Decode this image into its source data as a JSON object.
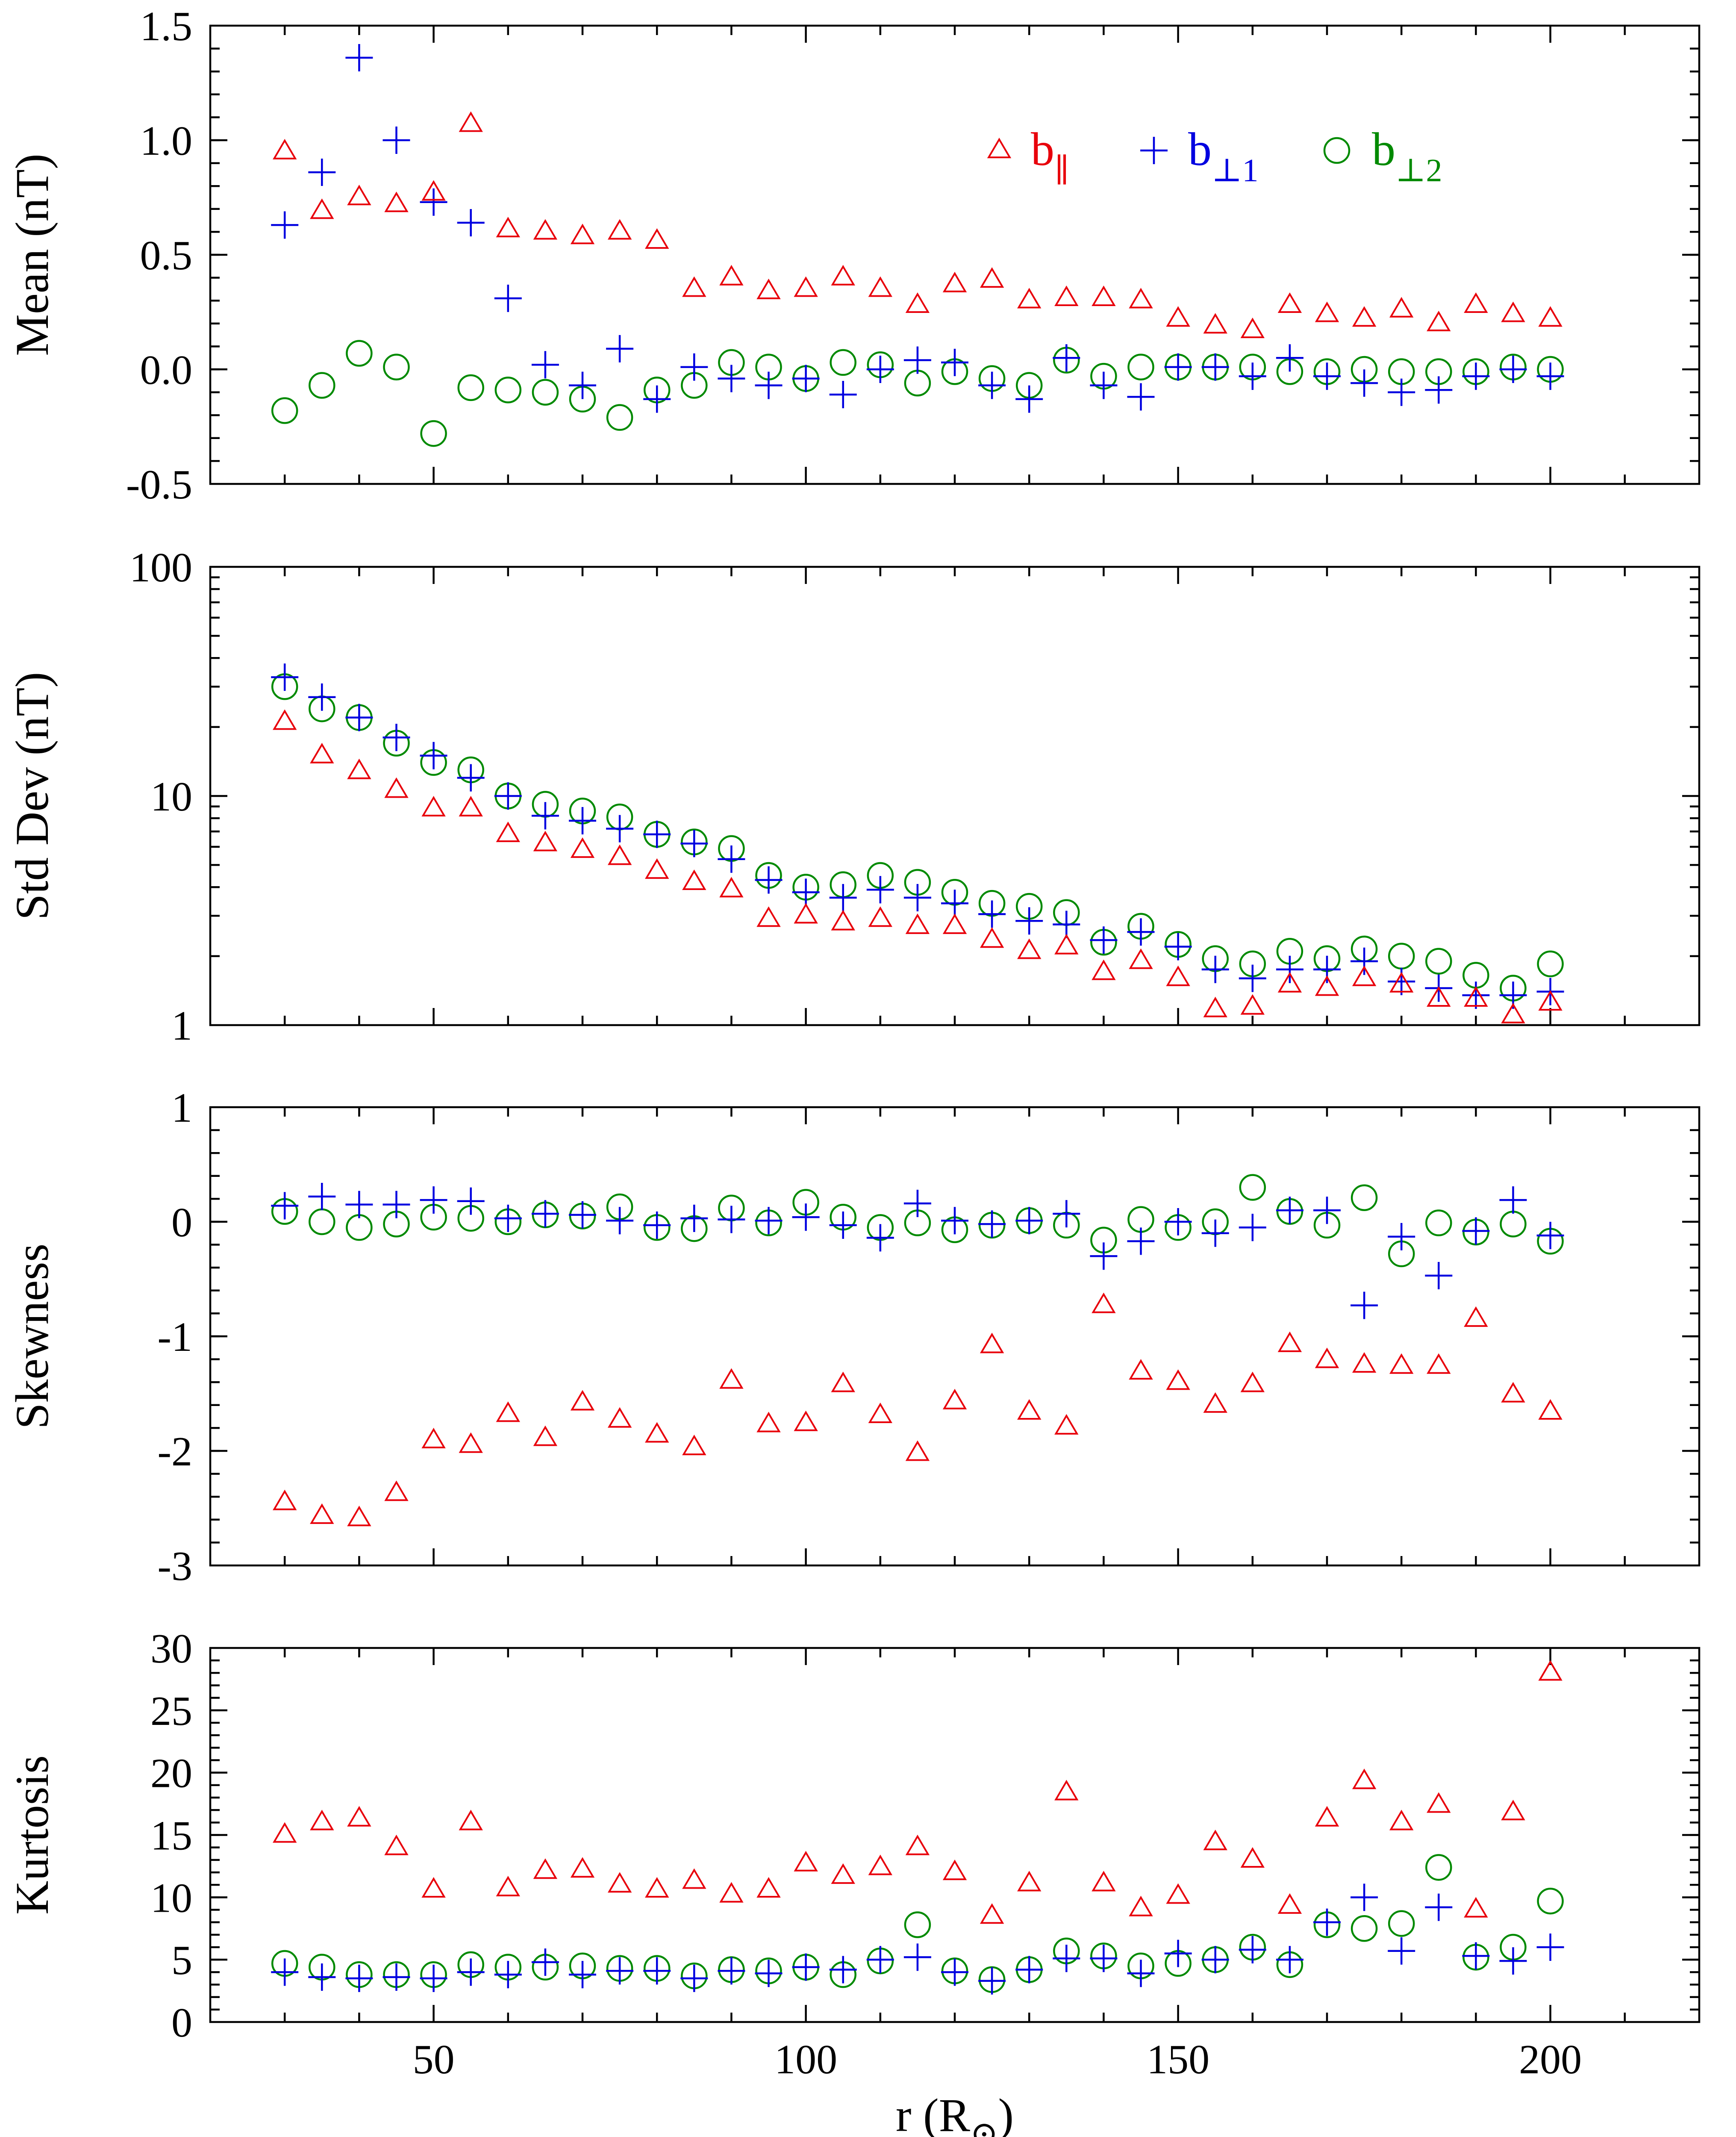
{
  "figure": {
    "xlabel_main": "r (R",
    "xlabel_close": ")",
    "xlabel_sub": "⊙",
    "x_ticks": [
      "50",
      "100",
      "150",
      "200"
    ]
  },
  "legend": [
    {
      "name": "b",
      "sub": "∥",
      "marker": "triangle",
      "color": "#e8000b"
    },
    {
      "name": "b",
      "sub": "⊥1",
      "marker": "plus",
      "color": "#0000e0"
    },
    {
      "name": "b",
      "sub": "⊥2",
      "marker": "circle",
      "color": "#008a00"
    }
  ],
  "chart_data": [
    {
      "type": "scatter",
      "id": "mean",
      "ylabel": "Mean (nT)",
      "xlim": [
        20,
        220
      ],
      "ylim": [
        -0.5,
        1.5
      ],
      "yscale": "linear",
      "y_ticks": [
        1.5,
        1.0,
        0.5,
        0.0,
        -0.5
      ],
      "y_tick_labels": [
        "1.5",
        "1.0",
        "0.5",
        "0.0",
        "-0.5"
      ],
      "y_minor_step": 0.1,
      "x": [
        30,
        35,
        40,
        45,
        50,
        55,
        60,
        65,
        70,
        75,
        80,
        85,
        90,
        95,
        100,
        105,
        110,
        115,
        120,
        125,
        130,
        135,
        140,
        145,
        150,
        155,
        160,
        165,
        170,
        175,
        180,
        185,
        190,
        195,
        200
      ],
      "series": [
        {
          "name": "b∥",
          "values": [
            0.95,
            0.69,
            0.75,
            0.72,
            0.77,
            1.07,
            0.61,
            0.6,
            0.58,
            0.6,
            0.56,
            0.35,
            0.4,
            0.34,
            0.35,
            0.4,
            0.35,
            0.28,
            0.37,
            0.39,
            0.3,
            0.31,
            0.31,
            0.3,
            0.22,
            0.19,
            0.17,
            0.28,
            0.24,
            0.22,
            0.26,
            0.2,
            0.28,
            0.24,
            0.22
          ]
        },
        {
          "name": "b⊥1",
          "values": [
            0.63,
            0.86,
            1.36,
            1.0,
            0.73,
            0.64,
            0.31,
            0.02,
            -0.07,
            0.09,
            -0.13,
            0.01,
            -0.04,
            -0.07,
            -0.04,
            -0.11,
            0.0,
            0.04,
            0.03,
            -0.07,
            -0.13,
            0.05,
            -0.07,
            -0.12,
            0.01,
            0.01,
            -0.03,
            0.05,
            -0.03,
            -0.06,
            -0.1,
            -0.09,
            -0.03,
            0.0,
            -0.03
          ]
        },
        {
          "name": "b⊥2",
          "values": [
            -0.18,
            -0.07,
            0.07,
            0.01,
            -0.28,
            -0.08,
            -0.09,
            -0.1,
            -0.13,
            -0.21,
            -0.09,
            -0.07,
            0.03,
            0.01,
            -0.04,
            0.03,
            0.02,
            -0.06,
            -0.01,
            -0.04,
            -0.07,
            0.04,
            -0.03,
            0.01,
            0.01,
            0.01,
            0.01,
            -0.01,
            -0.01,
            0.0,
            -0.01,
            -0.01,
            -0.01,
            0.01,
            0.0
          ]
        }
      ]
    },
    {
      "type": "scatter",
      "id": "stddev",
      "ylabel": "Std Dev (nT)",
      "xlim": [
        20,
        220
      ],
      "ylim": [
        1,
        100
      ],
      "yscale": "log",
      "y_ticks": [
        100,
        10,
        1
      ],
      "y_tick_labels": [
        "100",
        "10",
        "1"
      ],
      "x": [
        30,
        35,
        40,
        45,
        50,
        55,
        60,
        65,
        70,
        75,
        80,
        85,
        90,
        95,
        100,
        105,
        110,
        115,
        120,
        125,
        130,
        135,
        140,
        145,
        150,
        155,
        160,
        165,
        170,
        175,
        180,
        185,
        190,
        195,
        200
      ],
      "series": [
        {
          "name": "b∥",
          "values": [
            21,
            15,
            12.8,
            10.6,
            8.8,
            8.8,
            6.8,
            6.2,
            5.8,
            5.4,
            4.7,
            4.2,
            3.9,
            2.9,
            3.0,
            2.8,
            2.9,
            2.7,
            2.7,
            2.35,
            2.1,
            2.2,
            1.7,
            1.9,
            1.6,
            1.17,
            1.2,
            1.5,
            1.45,
            1.6,
            1.5,
            1.3,
            1.3,
            1.1,
            1.25
          ]
        },
        {
          "name": "b⊥1",
          "values": [
            33,
            27,
            22,
            18,
            15,
            12,
            10,
            8.2,
            7.8,
            7.2,
            6.8,
            6.2,
            5.3,
            4.3,
            3.8,
            3.6,
            3.9,
            3.6,
            3.4,
            3.05,
            2.85,
            2.75,
            2.35,
            2.55,
            2.2,
            1.75,
            1.6,
            1.75,
            1.75,
            1.9,
            1.55,
            1.45,
            1.35,
            1.35,
            1.4
          ]
        },
        {
          "name": "b⊥2",
          "values": [
            30,
            24,
            22,
            17,
            14,
            13,
            10,
            9.2,
            8.6,
            8.1,
            6.8,
            6.3,
            5.9,
            4.5,
            4.0,
            4.1,
            4.5,
            4.2,
            3.8,
            3.4,
            3.3,
            3.1,
            2.3,
            2.7,
            2.25,
            1.95,
            1.85,
            2.1,
            1.95,
            2.15,
            2.0,
            1.9,
            1.65,
            1.45,
            1.85
          ]
        }
      ]
    },
    {
      "type": "scatter",
      "id": "skewness",
      "ylabel": "Skewness",
      "xlim": [
        20,
        220
      ],
      "ylim": [
        -3,
        1
      ],
      "yscale": "linear",
      "y_ticks": [
        1,
        0,
        -1,
        -2,
        -3
      ],
      "y_tick_labels": [
        "1",
        "0",
        "-1",
        "-2",
        "-3"
      ],
      "y_minor_step": 0.2,
      "x": [
        30,
        35,
        40,
        45,
        50,
        55,
        60,
        65,
        70,
        75,
        80,
        85,
        90,
        95,
        100,
        105,
        110,
        115,
        120,
        125,
        130,
        135,
        140,
        145,
        150,
        155,
        160,
        165,
        170,
        175,
        180,
        185,
        190,
        195,
        200
      ],
      "series": [
        {
          "name": "b∥",
          "values": [
            -2.45,
            -2.57,
            -2.59,
            -2.37,
            -1.91,
            -1.95,
            -1.68,
            -1.89,
            -1.58,
            -1.73,
            -1.86,
            -1.97,
            -1.39,
            -1.77,
            -1.76,
            -1.42,
            -1.69,
            -2.02,
            -1.57,
            -1.08,
            -1.66,
            -1.79,
            -0.73,
            -1.31,
            -1.4,
            -1.6,
            -1.42,
            -1.07,
            -1.21,
            -1.25,
            -1.26,
            -1.26,
            -0.85,
            -1.51,
            -1.66
          ]
        },
        {
          "name": "b⊥1",
          "values": [
            0.14,
            0.22,
            0.15,
            0.15,
            0.19,
            0.18,
            0.03,
            0.07,
            0.06,
            0.01,
            -0.03,
            0.03,
            0.02,
            0.01,
            0.04,
            -0.03,
            -0.14,
            0.16,
            0.01,
            -0.02,
            0.01,
            0.07,
            -0.3,
            -0.17,
            0.0,
            -0.1,
            -0.05,
            0.1,
            0.1,
            -0.73,
            -0.13,
            -0.47,
            -0.08,
            0.19,
            -0.12
          ]
        },
        {
          "name": "b⊥2",
          "values": [
            0.09,
            0.0,
            -0.05,
            -0.02,
            0.04,
            0.03,
            0.0,
            0.06,
            0.05,
            0.13,
            -0.05,
            -0.06,
            0.12,
            -0.01,
            0.17,
            0.04,
            -0.05,
            -0.01,
            -0.07,
            -0.03,
            0.01,
            -0.03,
            -0.16,
            0.02,
            -0.05,
            0.0,
            0.3,
            0.09,
            -0.03,
            0.21,
            -0.28,
            -0.01,
            -0.09,
            -0.02,
            -0.17
          ]
        }
      ]
    },
    {
      "type": "scatter",
      "id": "kurtosis",
      "ylabel": "Kurtosis",
      "xlim": [
        20,
        220
      ],
      "ylim": [
        0,
        30
      ],
      "yscale": "linear",
      "y_ticks": [
        30,
        25,
        20,
        15,
        10,
        5,
        0
      ],
      "y_tick_labels": [
        "30",
        "25",
        "20",
        "15",
        "10",
        "5",
        "0"
      ],
      "y_minor_step": 1,
      "x": [
        30,
        35,
        40,
        45,
        50,
        55,
        60,
        65,
        70,
        75,
        80,
        85,
        90,
        95,
        100,
        105,
        110,
        115,
        120,
        125,
        130,
        135,
        140,
        145,
        150,
        155,
        160,
        165,
        170,
        175,
        180,
        185,
        190,
        195,
        200
      ],
      "series": [
        {
          "name": "b∥",
          "values": [
            15,
            16,
            16.3,
            14,
            10.6,
            16,
            10.7,
            12.1,
            12.2,
            11,
            10.6,
            11.3,
            10.2,
            10.6,
            12.7,
            11.7,
            12.4,
            14,
            12,
            8.5,
            11.1,
            18.4,
            11.1,
            9.1,
            10.1,
            14.4,
            13,
            9.3,
            16.3,
            19.3,
            16,
            17.4,
            9,
            16.8,
            28
          ]
        },
        {
          "name": "b⊥1",
          "values": [
            4.0,
            3.6,
            3.5,
            3.6,
            3.5,
            4.0,
            3.8,
            4.8,
            3.8,
            4.1,
            4.1,
            3.5,
            4.1,
            3.9,
            4.4,
            4.2,
            5.0,
            5.2,
            4.0,
            3.3,
            4.2,
            5.1,
            5.1,
            3.9,
            5.5,
            5.0,
            5.8,
            5.0,
            8.0,
            10.0,
            5.7,
            9.2,
            5.3,
            4.9,
            6.0
          ]
        },
        {
          "name": "b⊥2",
          "values": [
            4.7,
            4.4,
            3.8,
            3.8,
            3.8,
            4.6,
            4.4,
            4.4,
            4.5,
            4.3,
            4.3,
            3.7,
            4.2,
            4.1,
            4.4,
            3.8,
            4.9,
            7.8,
            4.1,
            3.4,
            4.2,
            5.7,
            5.3,
            4.5,
            4.7,
            5.0,
            6.0,
            4.6,
            7.8,
            7.5,
            7.9,
            12.4,
            5.2,
            6.0,
            9.7
          ]
        }
      ]
    }
  ]
}
